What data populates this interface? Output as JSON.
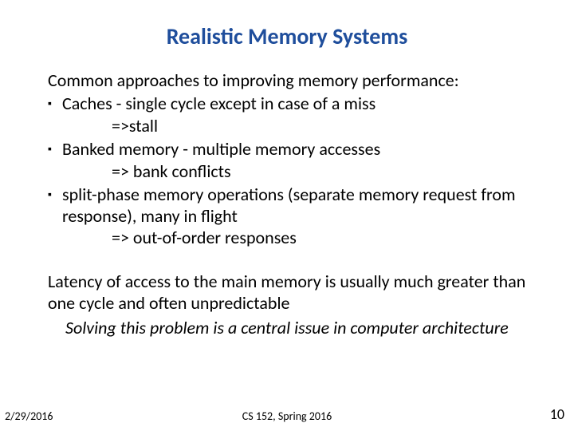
{
  "title": {
    "text": "Realistic Memory Systems",
    "color": "#1f4e9c",
    "fontsize": 28
  },
  "body": {
    "color": "#000000",
    "fontsize": 22,
    "intro": "Common approaches to improving memory performance:",
    "bullets": [
      {
        "text": "Caches - single cycle except in case of a miss",
        "sub": "=>stall"
      },
      {
        "text": "Banked memory - multiple memory accesses",
        "sub": "=> bank conflicts"
      },
      {
        "text": "split-phase memory operations (separate memory request from response), many in flight",
        "sub": "=> out-of-order responses"
      }
    ],
    "para2": "Latency of access to the main memory is usually much greater than one cycle and often unpredictable",
    "para3": "Solving this problem is a central issue in computer architecture"
  },
  "footer": {
    "date": "2/29/2016",
    "course": "CS 152, Spring 2016",
    "page": "10",
    "fontsize_small": 14,
    "fontsize_page": 18,
    "color": "#000000"
  }
}
